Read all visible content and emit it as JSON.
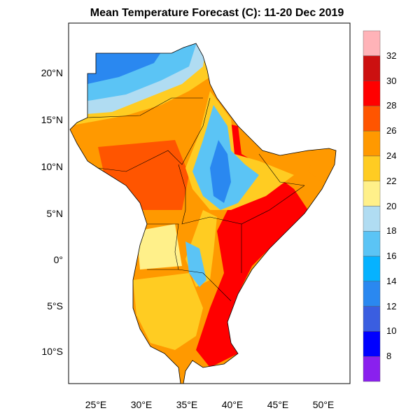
{
  "title": "Mean Temperature Forecast (C):  11-20 Dec 2019",
  "map": {
    "lon_range": [
      22,
      53
    ],
    "lat_range": [
      -13.3,
      25.4
    ],
    "lat_ticks": [
      "20°N",
      "15°N",
      "10°N",
      "5°N",
      "0°",
      "5°S",
      "10°S"
    ],
    "lon_ticks": [
      "25°E",
      "30°E",
      "35°E",
      "40°E",
      "45°E",
      "50°E"
    ]
  },
  "colorbar": {
    "labels": [
      "32",
      "30",
      "28",
      "26",
      "24",
      "22",
      "20",
      "18",
      "16",
      "14",
      "12",
      "10",
      "8"
    ],
    "colors": [
      "#ffb3b8",
      "#cc1010",
      "#ff0000",
      "#ff5500",
      "#ff9900",
      "#ffcc22",
      "#fff08a",
      "#b0dcf2",
      "#5bc4f5",
      "#06b2ff",
      "#2a88f0",
      "#3a5ee0",
      "#0000ff",
      "#8a20ee"
    ]
  }
}
